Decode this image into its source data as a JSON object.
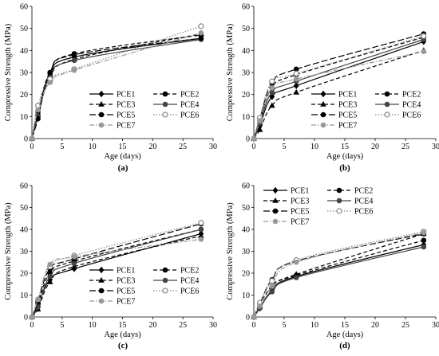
{
  "chart_data": [
    {
      "type": "line",
      "panel_label": "(a)",
      "xlabel": "Age (days)",
      "ylabel": "Compressive Strength (MPa)",
      "xlim": [
        0,
        30
      ],
      "ylim": [
        0,
        60
      ],
      "xticks": [
        0,
        5,
        10,
        15,
        20,
        25,
        30
      ],
      "yticks": [
        0,
        10,
        20,
        30,
        40,
        50,
        60
      ],
      "legend_position": "bottom-right",
      "series": [
        {
          "name": "PCE1",
          "x": [
            0,
            1,
            3,
            7,
            28
          ],
          "y": [
            0,
            11,
            29,
            37,
            45.5
          ]
        },
        {
          "name": "PCE2",
          "x": [
            0,
            1,
            3,
            7,
            28
          ],
          "y": [
            0,
            12,
            30,
            38.5,
            47
          ]
        },
        {
          "name": "PCE3",
          "x": [
            0,
            1,
            3,
            7,
            28
          ],
          "y": [
            0,
            11,
            27,
            36,
            47.5
          ]
        },
        {
          "name": "PCE4",
          "x": [
            0,
            1,
            3,
            7,
            28
          ],
          "y": [
            0,
            10,
            28,
            35.5,
            45
          ]
        },
        {
          "name": "PCE5",
          "x": [
            0,
            1,
            3,
            7,
            28
          ],
          "y": [
            0,
            9,
            30,
            38,
            45.5
          ]
        },
        {
          "name": "PCE6",
          "x": [
            0,
            1,
            3,
            7,
            28
          ],
          "y": [
            0,
            15,
            27,
            31.5,
            51
          ]
        },
        {
          "name": "PCE7",
          "x": [
            0,
            1,
            3,
            7,
            28
          ],
          "y": [
            0,
            13,
            25.5,
            31,
            48
          ]
        }
      ]
    },
    {
      "type": "line",
      "panel_label": "(b)",
      "xlabel": "Age (days)",
      "ylabel": "Compressive Strength (MPa)",
      "xlim": [
        0,
        30
      ],
      "ylim": [
        0,
        60
      ],
      "xticks": [
        0,
        5,
        10,
        15,
        20,
        25,
        30
      ],
      "yticks": [
        0,
        10,
        20,
        30,
        40,
        50,
        60
      ],
      "legend_position": "bottom-right",
      "series": [
        {
          "name": "PCE1",
          "x": [
            0,
            1,
            3,
            7,
            28
          ],
          "y": [
            0,
            6,
            19,
            24,
            44
          ]
        },
        {
          "name": "PCE2",
          "x": [
            0,
            1,
            3,
            7,
            28
          ],
          "y": [
            0,
            8,
            23,
            29,
            46
          ]
        },
        {
          "name": "PCE3",
          "x": [
            0,
            1,
            3,
            7,
            28
          ],
          "y": [
            0,
            4,
            15,
            21,
            40
          ]
        },
        {
          "name": "PCE4",
          "x": [
            0,
            1,
            3,
            7,
            28
          ],
          "y": [
            0,
            7,
            21,
            26,
            45
          ]
        },
        {
          "name": "PCE5",
          "x": [
            0,
            1,
            3,
            7,
            28
          ],
          "y": [
            0,
            9,
            25,
            31.5,
            47.5
          ]
        },
        {
          "name": "PCE6",
          "x": [
            0,
            1,
            3,
            7,
            28
          ],
          "y": [
            0,
            9.5,
            26,
            29.5,
            46.5
          ]
        },
        {
          "name": "PCE7",
          "x": [
            0,
            1,
            3,
            7,
            28
          ],
          "y": [
            0,
            8,
            23,
            27,
            39.5
          ]
        }
      ]
    },
    {
      "type": "line",
      "panel_label": "(c)",
      "xlabel": "Age (days)",
      "ylabel": "Compressive Strength (MPa)",
      "xlim": [
        0,
        30
      ],
      "ylim": [
        0,
        60
      ],
      "xticks": [
        0,
        5,
        10,
        15,
        20,
        25,
        30
      ],
      "yticks": [
        0,
        10,
        20,
        30,
        40,
        50,
        60
      ],
      "legend_position": "bottom-right",
      "series": [
        {
          "name": "PCE1",
          "x": [
            0,
            1,
            3,
            7,
            28
          ],
          "y": [
            0,
            5,
            17,
            22,
            38
          ]
        },
        {
          "name": "PCE2",
          "x": [
            0,
            1,
            3,
            7,
            28
          ],
          "y": [
            0,
            6,
            20,
            25.5,
            40
          ]
        },
        {
          "name": "PCE3",
          "x": [
            0,
            1,
            3,
            7,
            28
          ],
          "y": [
            0,
            3.5,
            16,
            23,
            37
          ]
        },
        {
          "name": "PCE4",
          "x": [
            0,
            1,
            3,
            7,
            28
          ],
          "y": [
            0,
            4.5,
            18.5,
            24.5,
            40
          ]
        },
        {
          "name": "PCE5",
          "x": [
            0,
            1,
            3,
            7,
            28
          ],
          "y": [
            0,
            7,
            22,
            26.5,
            42.5
          ]
        },
        {
          "name": "PCE6",
          "x": [
            0,
            1,
            3,
            7,
            28
          ],
          "y": [
            0,
            8,
            23,
            28,
            43
          ]
        },
        {
          "name": "PCE7",
          "x": [
            0,
            1,
            3,
            7,
            28
          ],
          "y": [
            0,
            8,
            24,
            27.5,
            35.5
          ]
        }
      ]
    },
    {
      "type": "line",
      "panel_label": "(d)",
      "xlabel": "Age (days)",
      "ylabel": "Compressive Strength (MPa)",
      "xlim": [
        0,
        30
      ],
      "ylim": [
        0,
        60
      ],
      "xticks": [
        0,
        5,
        10,
        15,
        20,
        25,
        30
      ],
      "yticks": [
        0,
        10,
        20,
        30,
        40,
        50,
        60
      ],
      "legend_position": "top-left",
      "series": [
        {
          "name": "PCE1",
          "x": [
            0,
            1,
            3,
            7,
            28
          ],
          "y": [
            0,
            4,
            12,
            18.5,
            33
          ]
        },
        {
          "name": "PCE2",
          "x": [
            0,
            1,
            3,
            7,
            28
          ],
          "y": [
            0,
            5,
            14,
            19,
            35
          ]
        },
        {
          "name": "PCE3",
          "x": [
            0,
            1,
            3,
            7,
            28
          ],
          "y": [
            0,
            5,
            14,
            19.5,
            38
          ]
        },
        {
          "name": "PCE4",
          "x": [
            0,
            1,
            3,
            7,
            28
          ],
          "y": [
            0,
            4,
            11.5,
            18,
            32
          ]
        },
        {
          "name": "PCE5",
          "x": [
            0,
            1,
            3,
            7,
            28
          ],
          "y": [
            0,
            6,
            17,
            25.5,
            38
          ]
        },
        {
          "name": "PCE6",
          "x": [
            0,
            1,
            3,
            7,
            28
          ],
          "y": [
            0,
            6.5,
            16.5,
            26,
            39
          ]
        },
        {
          "name": "PCE7",
          "x": [
            0,
            1,
            3,
            7,
            28
          ],
          "y": [
            0,
            5,
            14,
            25,
            38.5
          ]
        }
      ]
    }
  ],
  "series_styles": {
    "PCE1": {
      "marker": "diamond",
      "color": "#000000",
      "dash": "solid"
    },
    "PCE2": {
      "marker": "circle",
      "color": "#000000",
      "dash": "dash"
    },
    "PCE3": {
      "marker": "triangle",
      "color": "#000000",
      "dash": "dash"
    },
    "PCE4": {
      "marker": "circle",
      "color": "#444444",
      "dash": "solid"
    },
    "PCE5": {
      "marker": "circle",
      "color": "#000000",
      "dash": "longdash"
    },
    "PCE6": {
      "marker": "circle-open",
      "color": "#888888",
      "dash": "dot"
    },
    "PCE7": {
      "marker": "circle",
      "color": "#999999",
      "dash": "dashdot"
    }
  }
}
